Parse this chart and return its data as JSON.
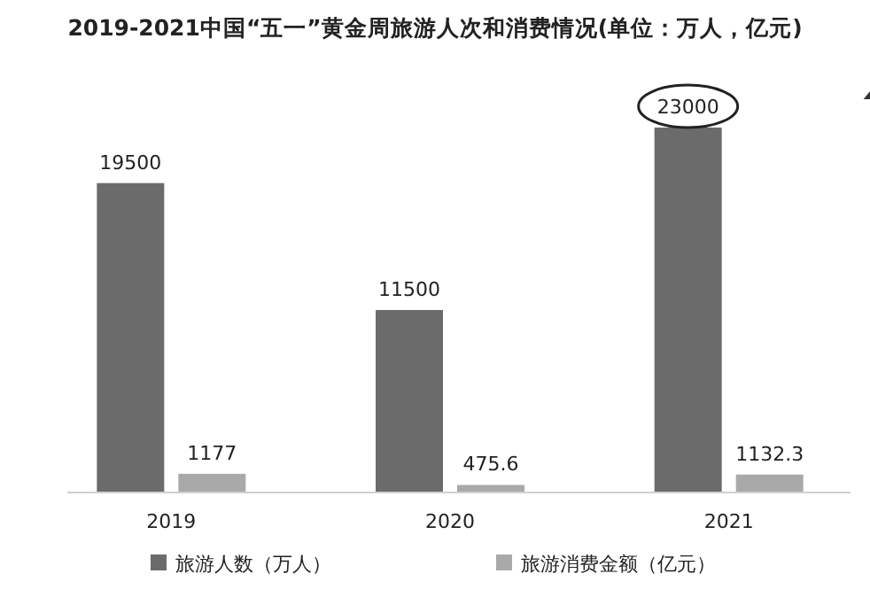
{
  "chart_data": {
    "type": "bar",
    "title": "2019-2021中国“五一”黄金周旅游人次和消费情况(单位：万人，亿元)",
    "categories": [
      "2019",
      "2020",
      "2021"
    ],
    "series": [
      {
        "name": "旅游人数（万人）",
        "color": "#6b6b6b",
        "values": [
          19500,
          11500,
          23000
        ]
      },
      {
        "name": "旅游消费金额（亿元）",
        "color": "#a9a9a9",
        "values": [
          1177,
          475.6,
          1132.3
        ]
      }
    ],
    "data_labels": true,
    "legend": "bottom"
  }
}
